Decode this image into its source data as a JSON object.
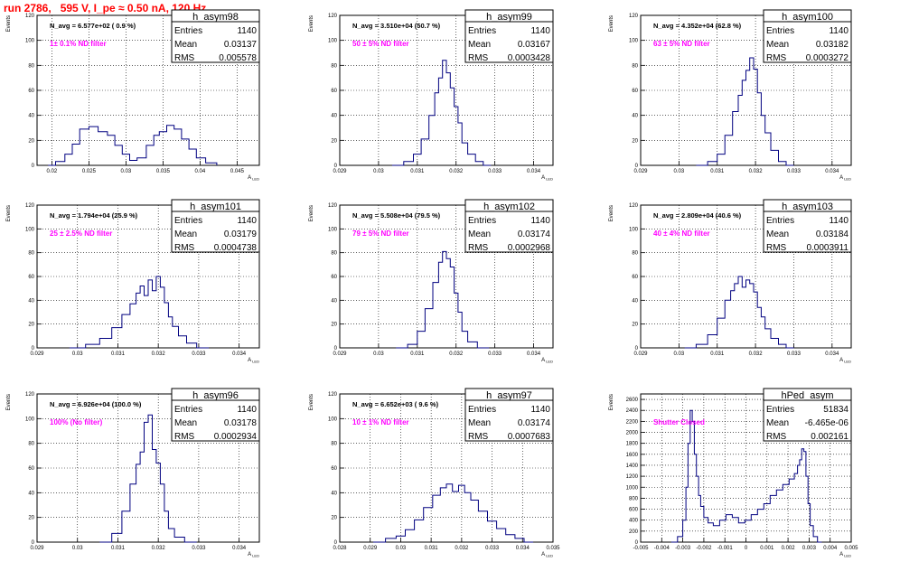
{
  "page_title": "run 2786,   595 V, I_pe ≈ 0.50 nA, 120 Hz",
  "colors": {
    "histogram": "#000080",
    "annotation": "#ff00ff",
    "title": "#ff0000",
    "frame": "#000000"
  },
  "chart_data": [
    {
      "type": "histogram",
      "name": "h_asym98",
      "navg": "N_avg = 6.577e+02 ( 0.9 %)",
      "filter": "1± 0.1% ND filter",
      "stats": {
        "Entries": "1140",
        "Mean": "0.03137",
        "RMS": "0.005578"
      },
      "xlabel": "A_LED",
      "ylabel": "Events",
      "xlim": [
        0.018,
        0.048
      ],
      "ylim": [
        0,
        120
      ],
      "xticks": [
        0.02,
        0.025,
        0.03,
        0.035,
        0.04,
        0.045
      ],
      "xtick_labels": [
        "0.02",
        "0.025",
        "0.03",
        "0.035",
        "0.04",
        "0.045"
      ],
      "yticks": [
        0,
        20,
        40,
        60,
        80,
        100,
        120
      ],
      "grid": true,
      "bins": [
        0.02,
        0.021,
        0.0225,
        0.023,
        0.0245,
        0.0255,
        0.027,
        0.028,
        0.029,
        0.03,
        0.031,
        0.032,
        0.0335,
        0.034,
        0.035,
        0.036,
        0.037,
        0.038,
        0.039,
        0.04,
        0.0415
      ],
      "counts": [
        0,
        3,
        9,
        17,
        29,
        31,
        27,
        24,
        16,
        9,
        4,
        6,
        16,
        24,
        27,
        32,
        29,
        21,
        13,
        6,
        2
      ]
    },
    {
      "type": "histogram",
      "name": "h_asym99",
      "navg": "N_avg = 3.510e+04 (50.7 %)",
      "filter": "50 ± 5% ND filter",
      "stats": {
        "Entries": "1140",
        "Mean": "0.03167",
        "RMS": "0.0003428"
      },
      "xlabel": "A_LED",
      "ylabel": "Events",
      "xlim": [
        0.029,
        0.0345
      ],
      "ylim": [
        0,
        120
      ],
      "xticks": [
        0.029,
        0.03,
        0.031,
        0.032,
        0.033,
        0.034
      ],
      "xtick_labels": [
        "0.029",
        "0.03",
        "0.031",
        "0.032",
        "0.033",
        "0.034"
      ],
      "yticks": [
        0,
        20,
        40,
        60,
        80,
        100,
        120
      ],
      "grid": true,
      "bins": [
        0.0305,
        0.0308,
        0.031,
        0.0312,
        0.0314,
        0.0315,
        0.0316,
        0.0317,
        0.0318,
        0.0319,
        0.032,
        0.0321,
        0.0322,
        0.0324,
        0.0326,
        0.0328
      ],
      "counts": [
        0,
        3,
        9,
        21,
        40,
        58,
        70,
        84,
        74,
        62,
        47,
        34,
        18,
        9,
        3,
        0
      ]
    },
    {
      "type": "histogram",
      "name": "h_asym100",
      "navg": "N_avg = 4.352e+04 (62.8 %)",
      "filter": "63 ± 5% ND filter",
      "stats": {
        "Entries": "1140",
        "Mean": "0.03182",
        "RMS": "0.0003272"
      },
      "xlabel": "A_LED",
      "ylabel": "Events",
      "xlim": [
        0.029,
        0.0345
      ],
      "ylim": [
        0,
        120
      ],
      "xticks": [
        0.029,
        0.03,
        0.031,
        0.032,
        0.033,
        0.034
      ],
      "xtick_labels": [
        "0.029",
        "0.03",
        "0.031",
        "0.032",
        "0.033",
        "0.034"
      ],
      "yticks": [
        0,
        20,
        40,
        60,
        80,
        100,
        120
      ],
      "grid": true,
      "bins": [
        0.0306,
        0.0309,
        0.0311,
        0.0313,
        0.0315,
        0.0316,
        0.0317,
        0.0318,
        0.0319,
        0.032,
        0.0321,
        0.0322,
        0.0323,
        0.0325,
        0.0327,
        0.0329
      ],
      "counts": [
        0,
        3,
        9,
        24,
        43,
        56,
        68,
        76,
        86,
        77,
        58,
        40,
        26,
        12,
        3,
        0
      ]
    },
    {
      "type": "histogram",
      "name": "h_asym101",
      "navg": "N_avg = 1.794e+04 (25.9 %)",
      "filter": "25 ± 2.5% ND filter",
      "stats": {
        "Entries": "1140",
        "Mean": "0.03179",
        "RMS": "0.0004738"
      },
      "xlabel": "A_LED",
      "ylabel": "Events",
      "xlim": [
        0.029,
        0.0345
      ],
      "ylim": [
        0,
        120
      ],
      "xticks": [
        0.029,
        0.03,
        0.031,
        0.032,
        0.033,
        0.034
      ],
      "xtick_labels": [
        "0.029",
        "0.03",
        "0.031",
        "0.032",
        "0.033",
        "0.034"
      ],
      "yticks": [
        0,
        20,
        40,
        60,
        80,
        100,
        120
      ],
      "grid": true,
      "bins": [
        0.03,
        0.0304,
        0.0307,
        0.031,
        0.0312,
        0.0314,
        0.0315,
        0.0316,
        0.0317,
        0.0318,
        0.0319,
        0.032,
        0.0321,
        0.0322,
        0.0323,
        0.0324,
        0.0326,
        0.0328,
        0.0331
      ],
      "counts": [
        0,
        3,
        8,
        17,
        28,
        37,
        46,
        52,
        44,
        57,
        48,
        60,
        51,
        38,
        26,
        18,
        10,
        4,
        0
      ]
    },
    {
      "type": "histogram",
      "name": "h_asym102",
      "navg": "N_avg = 5.508e+04 (79.5 %)",
      "filter": "79 ± 5% ND filter",
      "stats": {
        "Entries": "1140",
        "Mean": "0.03174",
        "RMS": "0.0002968"
      },
      "xlabel": "A_LED",
      "ylabel": "Events",
      "xlim": [
        0.029,
        0.0345
      ],
      "ylim": [
        0,
        120
      ],
      "xticks": [
        0.029,
        0.03,
        0.031,
        0.032,
        0.033,
        0.034
      ],
      "xtick_labels": [
        "0.029",
        "0.03",
        "0.031",
        "0.032",
        "0.033",
        "0.034"
      ],
      "yticks": [
        0,
        20,
        40,
        60,
        80,
        100,
        120
      ],
      "grid": true,
      "bins": [
        0.0306,
        0.0309,
        0.0311,
        0.0313,
        0.0315,
        0.0316,
        0.0317,
        0.0318,
        0.0319,
        0.032,
        0.0321,
        0.0322,
        0.0324,
        0.0327
      ],
      "counts": [
        0,
        3,
        14,
        33,
        55,
        72,
        81,
        75,
        68,
        46,
        30,
        14,
        5,
        0
      ]
    },
    {
      "type": "histogram",
      "name": "h_asym103",
      "navg": "N_avg = 2.809e+04 (40.6 %)",
      "filter": "40 ± 4% ND filter",
      "stats": {
        "Entries": "1140",
        "Mean": "0.03184",
        "RMS": "0.0003911"
      },
      "xlabel": "A_LED",
      "ylabel": "Events",
      "xlim": [
        0.029,
        0.0345
      ],
      "ylim": [
        0,
        120
      ],
      "xticks": [
        0.029,
        0.03,
        0.031,
        0.032,
        0.033,
        0.034
      ],
      "xtick_labels": [
        "0.029",
        "0.03",
        "0.031",
        "0.032",
        "0.033",
        "0.034"
      ],
      "yticks": [
        0,
        20,
        40,
        60,
        80,
        100,
        120
      ],
      "grid": true,
      "bins": [
        0.0303,
        0.0306,
        0.0309,
        0.0311,
        0.0313,
        0.0314,
        0.0315,
        0.0316,
        0.0317,
        0.0318,
        0.0319,
        0.032,
        0.0321,
        0.0322,
        0.0323,
        0.0325,
        0.0327,
        0.0329
      ],
      "counts": [
        0,
        3,
        11,
        25,
        40,
        48,
        54,
        60,
        51,
        57,
        54,
        47,
        34,
        26,
        16,
        8,
        3,
        0
      ]
    },
    {
      "type": "histogram",
      "name": "h_asym96",
      "navg": "N_avg = 6.926e+04 (100.0 %)",
      "filter": "100% (No filter)",
      "stats": {
        "Entries": "1140",
        "Mean": "0.03178",
        "RMS": "0.0002934"
      },
      "xlabel": "A_LED",
      "ylabel": "Events",
      "xlim": [
        0.029,
        0.0345
      ],
      "ylim": [
        0,
        120
      ],
      "xticks": [
        0.029,
        0.03,
        0.031,
        0.032,
        0.033,
        0.034
      ],
      "xtick_labels": [
        "0.029",
        "0.03",
        "0.031",
        "0.032",
        "0.033",
        "0.034"
      ],
      "yticks": [
        0,
        20,
        40,
        60,
        80,
        100,
        120
      ],
      "grid": true,
      "bins": [
        0.0307,
        0.031,
        0.0312,
        0.0314,
        0.0315,
        0.0316,
        0.0317,
        0.0318,
        0.0319,
        0.032,
        0.0321,
        0.0322,
        0.0323,
        0.0325,
        0.0328
      ],
      "counts": [
        0,
        7,
        25,
        47,
        63,
        73,
        97,
        103,
        75,
        64,
        47,
        25,
        11,
        4,
        0
      ]
    },
    {
      "type": "histogram",
      "name": "h_asym97",
      "navg": "N_avg = 6.652e+03 ( 9.6 %)",
      "filter": "10 ± 1% ND filter",
      "stats": {
        "Entries": "1140",
        "Mean": "0.03174",
        "RMS": "0.0007683"
      },
      "xlabel": "A_LED",
      "ylabel": "Events",
      "xlim": [
        0.028,
        0.035
      ],
      "ylim": [
        0,
        120
      ],
      "xticks": [
        0.028,
        0.029,
        0.03,
        0.031,
        0.032,
        0.033,
        0.034,
        0.035
      ],
      "xtick_labels": [
        "0.028",
        "0.029",
        "0.03",
        "0.031",
        "0.032",
        "0.033",
        "0.034",
        "0.035"
      ],
      "yticks": [
        0,
        20,
        40,
        60,
        80,
        100,
        120
      ],
      "grid": true,
      "bins": [
        0.0293,
        0.0297,
        0.03,
        0.0303,
        0.0306,
        0.0309,
        0.0312,
        0.0314,
        0.0316,
        0.0318,
        0.032,
        0.0322,
        0.0324,
        0.0327,
        0.033,
        0.0333,
        0.0336,
        0.0339,
        0.0342
      ],
      "counts": [
        0,
        3,
        5,
        10,
        18,
        28,
        38,
        44,
        47,
        41,
        46,
        40,
        34,
        25,
        17,
        11,
        6,
        3,
        0
      ]
    },
    {
      "type": "histogram",
      "name": "hPed_asym",
      "navg": "",
      "filter": "Shutter Closed",
      "stats": {
        "Entries": "51834",
        "Mean": "-6.465e-06",
        "RMS": "0.002161"
      },
      "xlabel": "A_LED",
      "ylabel": "Events",
      "xlim": [
        -0.005,
        0.005
      ],
      "ylim": [
        0,
        2700
      ],
      "xticks": [
        -0.005,
        -0.004,
        -0.003,
        -0.002,
        -0.001,
        0,
        0.001,
        0.002,
        0.003,
        0.004,
        0.005
      ],
      "xtick_labels": [
        "-0.005",
        "-0.004",
        "-0.003",
        "-0.002",
        "-0.001",
        "0",
        "0.001",
        "0.002",
        "0.003",
        "0.004",
        "0.005"
      ],
      "yticks": [
        0,
        200,
        400,
        600,
        800,
        1000,
        1200,
        1400,
        1600,
        1800,
        2000,
        2200,
        2400,
        2600
      ],
      "grid": true,
      "bins": [
        -0.0034,
        -0.0031,
        -0.0029,
        -0.0028,
        -0.0027,
        -0.0026,
        -0.0025,
        -0.0024,
        -0.0023,
        -0.0022,
        -0.0021,
        -0.0019,
        -0.0017,
        -0.0014,
        -0.0011,
        -0.0008,
        -0.0005,
        -0.0002,
        0.0001,
        0.0004,
        0.0007,
        0.001,
        0.0013,
        0.0016,
        0.0019,
        0.0022,
        0.0024,
        0.0025,
        0.0026,
        0.0027,
        0.0028,
        0.0029,
        0.003,
        0.0031,
        0.0033,
        0.0035
      ],
      "counts": [
        0,
        100,
        400,
        1000,
        1800,
        2400,
        2200,
        1600,
        1200,
        850,
        650,
        450,
        350,
        300,
        400,
        500,
        450,
        350,
        400,
        500,
        600,
        700,
        850,
        950,
        1050,
        1150,
        1250,
        1400,
        1500,
        1700,
        1650,
        1200,
        700,
        300,
        100,
        0
      ]
    }
  ]
}
